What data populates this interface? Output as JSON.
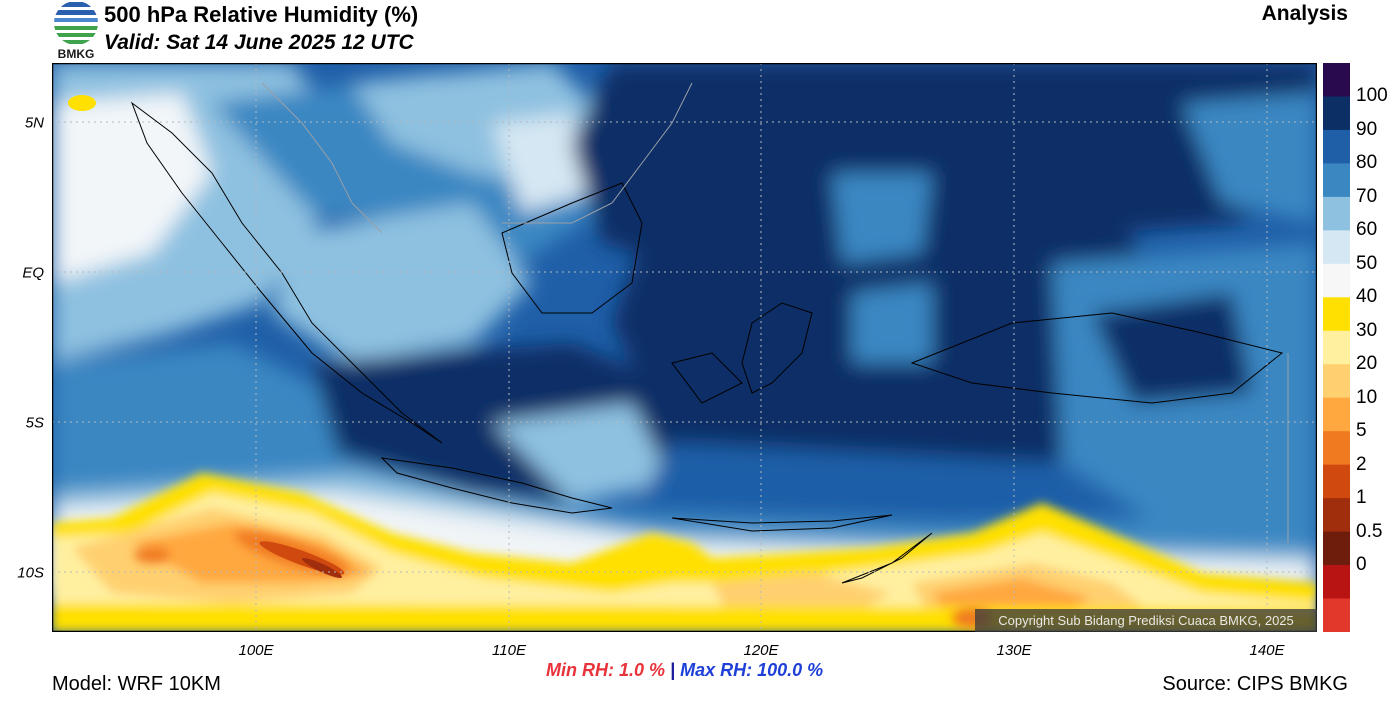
{
  "header": {
    "logo_text": "BMKG",
    "title": "500 hPa Relative Humidity (%)",
    "valid": "Valid: Sat 14 June 2025 12 UTC",
    "mode": "Analysis"
  },
  "map": {
    "lat_labels": [
      "5N",
      "EQ",
      "5S",
      "10S"
    ],
    "lon_labels": [
      "100E",
      "110E",
      "120E",
      "130E",
      "140E"
    ],
    "copyright": "Copyright Sub Bidang Prediksi Cuaca BMKG, 2025"
  },
  "colorbar": {
    "labels": [
      "100",
      "90",
      "80",
      "70",
      "60",
      "50",
      "40",
      "30",
      "20",
      "10",
      "5",
      "2",
      "1",
      "0.5",
      "0"
    ],
    "colors": [
      "#2a0a4e",
      "#0c2f66",
      "#1f5fa8",
      "#3b87c2",
      "#8ec1e0",
      "#d5e7f3",
      "#f7f7f7",
      "#ffe000",
      "#fff0a0",
      "#ffd070",
      "#ffa840",
      "#f07a20",
      "#d04a10",
      "#a02e0c",
      "#6e1c0c",
      "#b81414",
      "#e2382c"
    ]
  },
  "stats": {
    "min_rh": "Min RH:   1.0 %",
    "separator": "|",
    "max_rh": "Max RH: 100.0 %"
  },
  "footer": {
    "model": "Model: WRF 10KM",
    "source": "Source: CIPS BMKG"
  }
}
